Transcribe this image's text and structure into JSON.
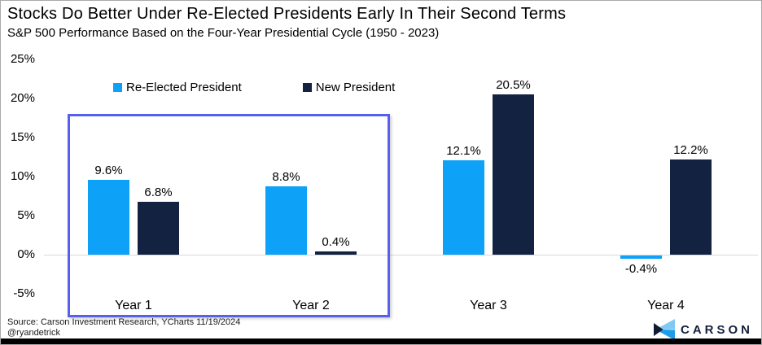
{
  "header": {
    "title": "Stocks Do Better Under Re-Elected Presidents Early In Their Second Terms",
    "subtitle": "S&P 500 Performance Based on the Four-Year Presidential Cycle (1950 - 2023)"
  },
  "chart_data": {
    "type": "bar",
    "title": "Stocks Do Better Under Re-Elected Presidents Early In Their Second Terms",
    "subtitle": "S&P 500 Performance Based on the Four-Year Presidential Cycle (1950 - 2023)",
    "categories": [
      "Year 1",
      "Year 2",
      "Year 3",
      "Year 4"
    ],
    "series": [
      {
        "name": "Re-Elected President",
        "color": "#0da1f7",
        "values": [
          9.6,
          8.8,
          12.1,
          -0.4
        ],
        "labels": [
          "9.6%",
          "8.8%",
          "12.1%",
          "-0.4%"
        ]
      },
      {
        "name": "New President",
        "color": "#132240",
        "values": [
          6.8,
          0.4,
          20.5,
          12.2
        ],
        "labels": [
          "6.8%",
          "0.4%",
          "20.5%",
          "12.2%"
        ]
      }
    ],
    "ylabel": "",
    "xlabel": "",
    "ylim": [
      -5,
      25
    ],
    "yticks": [
      {
        "label": "25%",
        "value": 25
      },
      {
        "label": "20%",
        "value": 20
      },
      {
        "label": "15%",
        "value": 15
      },
      {
        "label": "10%",
        "value": 10
      },
      {
        "label": "5%",
        "value": 5
      },
      {
        "label": "0%",
        "value": 0
      },
      {
        "label": "-5%",
        "value": -5
      }
    ],
    "grid": false,
    "legend_position": "top-left",
    "highlight_box": {
      "categories": [
        "Year 1",
        "Year 2"
      ],
      "color": "#5560ee"
    }
  },
  "footer": {
    "source_line1": "Source: Carson Investment Research, YCharts 11/19/2024",
    "source_line2": "@ryandetrick",
    "brand": "CARSON"
  },
  "colors": {
    "reelected_blue": "#0da1f7",
    "new_president_navy": "#132240",
    "highlight_border": "#5560ee",
    "axis_gray": "#d8d8d8",
    "bottom_bar_black": "#000000",
    "brand_navy": "#14213d"
  }
}
